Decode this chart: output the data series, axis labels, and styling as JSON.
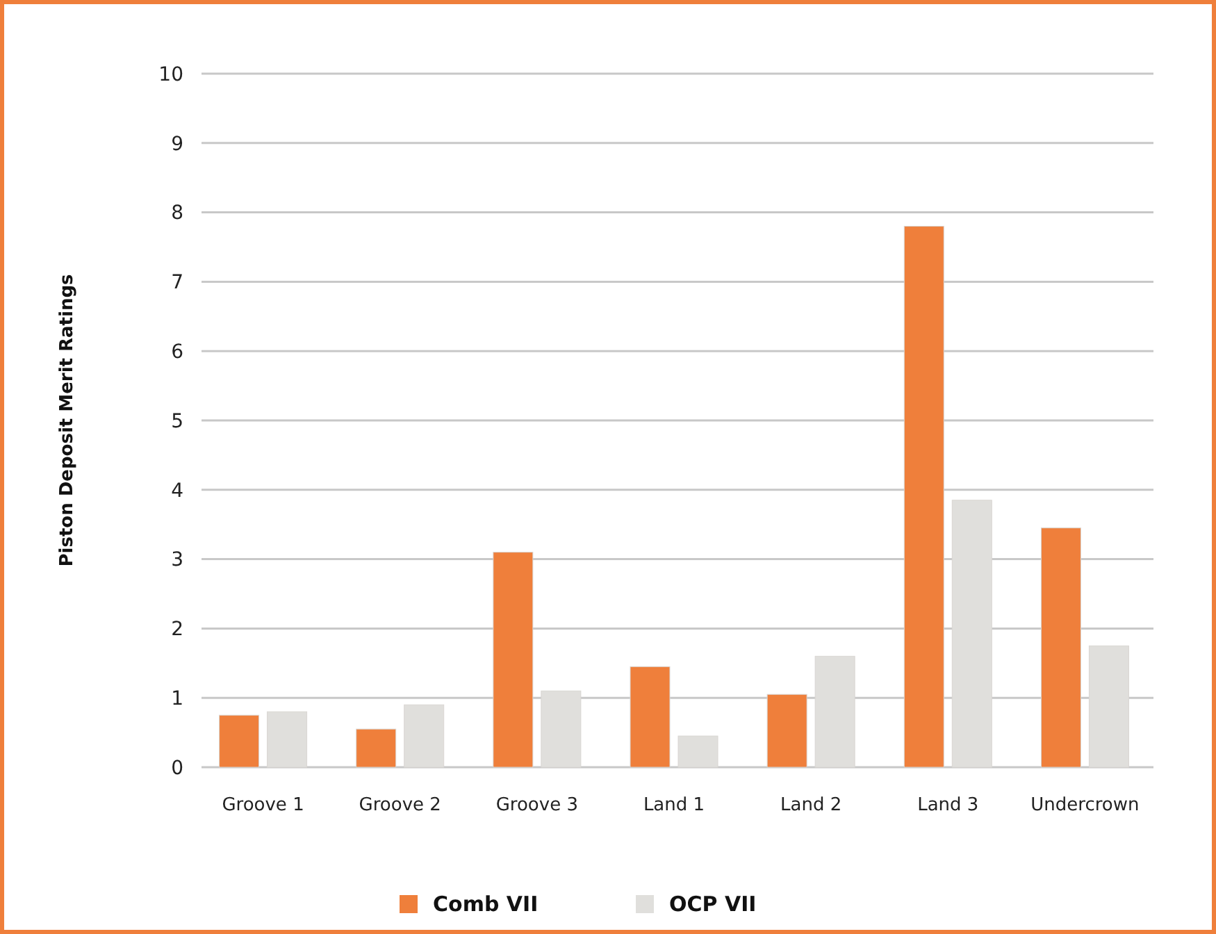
{
  "chart_data": {
    "type": "bar",
    "ylabel": "Piston Deposit Merit Ratings",
    "categories": [
      "Groove 1",
      "Groove 2",
      "Groove 3",
      "Land 1",
      "Land 2",
      "Land 3",
      "Undercrown"
    ],
    "series": [
      {
        "name": "Comb VII",
        "color": "#ef7f3b",
        "values": [
          0.75,
          0.55,
          3.1,
          1.45,
          1.05,
          7.8,
          3.45
        ]
      },
      {
        "name": "OCP VII",
        "color": "#e0dfdc",
        "values": [
          0.8,
          0.9,
          1.1,
          0.45,
          1.6,
          3.85,
          1.75
        ]
      }
    ],
    "ylim": [
      0,
      10
    ],
    "yticks": [
      0,
      1,
      2,
      3,
      4,
      5,
      6,
      7,
      8,
      9,
      10
    ],
    "grid": "y",
    "legend": "bottom"
  }
}
